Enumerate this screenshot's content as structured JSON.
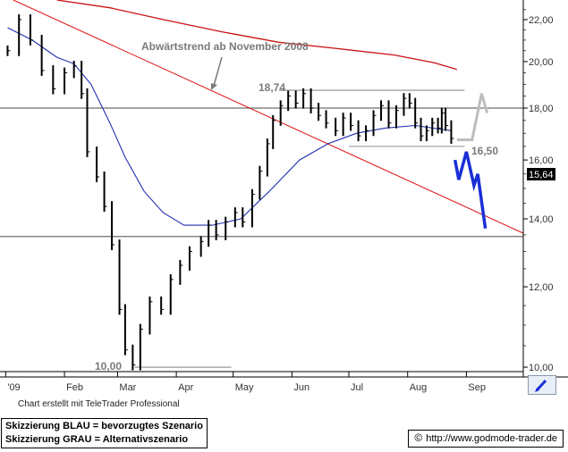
{
  "chart_data": {
    "type": "ohlc",
    "ylim": [
      9.9,
      23
    ],
    "y_scale": "log",
    "y_ticks": [
      10,
      12,
      14,
      16,
      18,
      20,
      22
    ],
    "y_tick_labels": [
      "10,00",
      "12,00",
      "14,00",
      "16,00",
      "18,00",
      "20,00",
      "22,00"
    ],
    "x_months": [
      "'09",
      "Feb",
      "Mar",
      "Apr",
      "May",
      "Jun",
      "Jul",
      "Aug",
      "Sep"
    ],
    "last_price": 15.64,
    "last_price_label": "15,64",
    "price_series": [
      {
        "date": "2009-01-02",
        "value": 20.5
      },
      {
        "date": "2009-01-08",
        "value": 22.0
      },
      {
        "date": "2009-01-14",
        "value": 21.0
      },
      {
        "date": "2009-01-20",
        "value": 19.6
      },
      {
        "date": "2009-01-26",
        "value": 18.8
      },
      {
        "date": "2009-02-01",
        "value": 19.5
      },
      {
        "date": "2009-02-06",
        "value": 19.8
      },
      {
        "date": "2009-02-10",
        "value": 18.6
      },
      {
        "date": "2009-02-13",
        "value": 16.3
      },
      {
        "date": "2009-02-18",
        "value": 15.4
      },
      {
        "date": "2009-02-22",
        "value": 14.4
      },
      {
        "date": "2009-02-26",
        "value": 13.2
      },
      {
        "date": "2009-03-02",
        "value": 11.4
      },
      {
        "date": "2009-03-05",
        "value": 10.4
      },
      {
        "date": "2009-03-09",
        "value": 10.05
      },
      {
        "date": "2009-03-13",
        "value": 10.9
      },
      {
        "date": "2009-03-18",
        "value": 11.6
      },
      {
        "date": "2009-03-24",
        "value": 11.4
      },
      {
        "date": "2009-03-29",
        "value": 12.2
      },
      {
        "date": "2009-04-03",
        "value": 12.6
      },
      {
        "date": "2009-04-08",
        "value": 13.0
      },
      {
        "date": "2009-04-14",
        "value": 13.3
      },
      {
        "date": "2009-04-18",
        "value": 13.8
      },
      {
        "date": "2009-04-22",
        "value": 13.5
      },
      {
        "date": "2009-04-27",
        "value": 13.9
      },
      {
        "date": "2009-05-02",
        "value": 14.2
      },
      {
        "date": "2009-05-06",
        "value": 13.9
      },
      {
        "date": "2009-05-11",
        "value": 14.8
      },
      {
        "date": "2009-05-15",
        "value": 15.6
      },
      {
        "date": "2009-05-19",
        "value": 16.6
      },
      {
        "date": "2009-05-22",
        "value": 17.5
      },
      {
        "date": "2009-05-26",
        "value": 18.1
      },
      {
        "date": "2009-05-30",
        "value": 18.5
      },
      {
        "date": "2009-06-03",
        "value": 18.2
      },
      {
        "date": "2009-06-07",
        "value": 18.6
      },
      {
        "date": "2009-06-11",
        "value": 18.0
      },
      {
        "date": "2009-06-15",
        "value": 17.7
      },
      {
        "date": "2009-06-19",
        "value": 17.4
      },
      {
        "date": "2009-06-24",
        "value": 17.1
      },
      {
        "date": "2009-06-28",
        "value": 17.6
      },
      {
        "date": "2009-07-02",
        "value": 17.3
      },
      {
        "date": "2009-07-06",
        "value": 16.9
      },
      {
        "date": "2009-07-10",
        "value": 17.1
      },
      {
        "date": "2009-07-14",
        "value": 17.7
      },
      {
        "date": "2009-07-18",
        "value": 18.1
      },
      {
        "date": "2009-07-22",
        "value": 17.4
      },
      {
        "date": "2009-07-26",
        "value": 17.9
      },
      {
        "date": "2009-07-30",
        "value": 18.4
      },
      {
        "date": "2009-08-02",
        "value": 18.2
      },
      {
        "date": "2009-08-05",
        "value": 17.4
      },
      {
        "date": "2009-08-08",
        "value": 16.9
      },
      {
        "date": "2009-08-11",
        "value": 17.1
      },
      {
        "date": "2009-08-14",
        "value": 17.4
      },
      {
        "date": "2009-08-17",
        "value": 17.2
      },
      {
        "date": "2009-08-19",
        "value": 17.8
      },
      {
        "date": "2009-08-21",
        "value": 17.3
      },
      {
        "date": "2009-08-24",
        "value": 16.8
      }
    ],
    "moving_average_short": [
      {
        "date": "2009-01-02",
        "value": 21.6
      },
      {
        "date": "2009-01-15",
        "value": 21.0
      },
      {
        "date": "2009-01-28",
        "value": 20.2
      },
      {
        "date": "2009-02-06",
        "value": 19.9
      },
      {
        "date": "2009-02-15",
        "value": 19.0
      },
      {
        "date": "2009-02-25",
        "value": 17.4
      },
      {
        "date": "2009-03-05",
        "value": 16.1
      },
      {
        "date": "2009-03-15",
        "value": 14.9
      },
      {
        "date": "2009-03-25",
        "value": 14.2
      },
      {
        "date": "2009-04-05",
        "value": 13.8
      },
      {
        "date": "2009-04-20",
        "value": 13.8
      },
      {
        "date": "2009-05-05",
        "value": 14.0
      },
      {
        "date": "2009-05-20",
        "value": 14.9
      },
      {
        "date": "2009-06-05",
        "value": 16.0
      },
      {
        "date": "2009-06-20",
        "value": 16.6
      },
      {
        "date": "2009-07-05",
        "value": 17.0
      },
      {
        "date": "2009-07-20",
        "value": 17.2
      },
      {
        "date": "2009-08-05",
        "value": 17.3
      },
      {
        "date": "2009-08-24",
        "value": 17.1
      }
    ],
    "moving_average_long": [
      {
        "date": "2009-01-28",
        "value": 23.0
      },
      {
        "date": "2009-02-25",
        "value": 22.6
      },
      {
        "date": "2009-03-25",
        "value": 22.0
      },
      {
        "date": "2009-04-25",
        "value": 21.4
      },
      {
        "date": "2009-05-25",
        "value": 20.9
      },
      {
        "date": "2009-06-25",
        "value": 20.6
      },
      {
        "date": "2009-07-25",
        "value": 20.3
      },
      {
        "date": "2009-08-15",
        "value": 19.95
      },
      {
        "date": "2009-08-27",
        "value": 19.65
      }
    ],
    "downtrend_line": [
      {
        "date": "2009-01-05",
        "value": 23.0
      },
      {
        "date": "2009-10-01",
        "value": 13.55
      }
    ],
    "horizontal_lines": [
      {
        "label": "18,74",
        "value": 18.74,
        "from": "2009-05-25",
        "to": "2009-08-31"
      },
      {
        "label": "16,50",
        "value": 16.5,
        "from": "2009-07-01",
        "to": "2009-08-31"
      },
      {
        "label": "10,00",
        "value": 10.0,
        "from": "2009-03-10",
        "to": "2009-04-30"
      },
      {
        "label": "",
        "value": 18.0,
        "from": "2008-12-29",
        "to": "2009-10-01"
      },
      {
        "label": "",
        "value": 13.45,
        "from": "2008-12-29",
        "to": "2009-10-01"
      }
    ],
    "scenario_blue": [
      {
        "date": "2009-08-26",
        "value": 16.0
      },
      {
        "date": "2009-08-28",
        "value": 15.3
      },
      {
        "date": "2009-09-01",
        "value": 16.3
      },
      {
        "date": "2009-09-05",
        "value": 15.1
      },
      {
        "date": "2009-09-07",
        "value": 15.5
      },
      {
        "date": "2009-09-11",
        "value": 13.7
      }
    ],
    "scenario_gray": [
      {
        "date": "2009-08-27",
        "value": 16.75
      },
      {
        "date": "2009-09-04",
        "value": 16.75
      },
      {
        "date": "2009-09-09",
        "value": 18.6
      },
      {
        "date": "2009-09-12",
        "value": 17.8
      }
    ],
    "annotations": [
      {
        "text": "Abwärtstrend ab November 2008"
      },
      {
        "text": "18,74"
      },
      {
        "text": "16,50"
      },
      {
        "text": "10,00"
      }
    ]
  },
  "colors": {
    "price": "#000000",
    "moving_average_short": "#1f2fb0",
    "moving_average_long": "#cc1111",
    "downtrend_line": "#dd1111",
    "scenario_blue": "#1a2fd6",
    "scenario_gray": "#bdbdbd",
    "grid_line": "#6e6e6e",
    "axis_text": "#333333"
  },
  "texts": {
    "title_annotation": "Abwärtstrend ab November 2008",
    "level_high": "18,74",
    "level_mid": "16,50",
    "level_low": "10,00",
    "last_price": "15,64",
    "credit": "Chart erstellt mit TeleTrader Professional",
    "legend_blue": "Skizzierung BLAU = bevorzugtes Szenario",
    "legend_gray": "Skizzierung GRAU = Alternativszenario",
    "copyright_symbol": "©",
    "website": "http://www.godmode-trader.de"
  },
  "icons": {
    "trend_arrow": "arrow-down-icon",
    "draw_tool": "pen-icon"
  }
}
